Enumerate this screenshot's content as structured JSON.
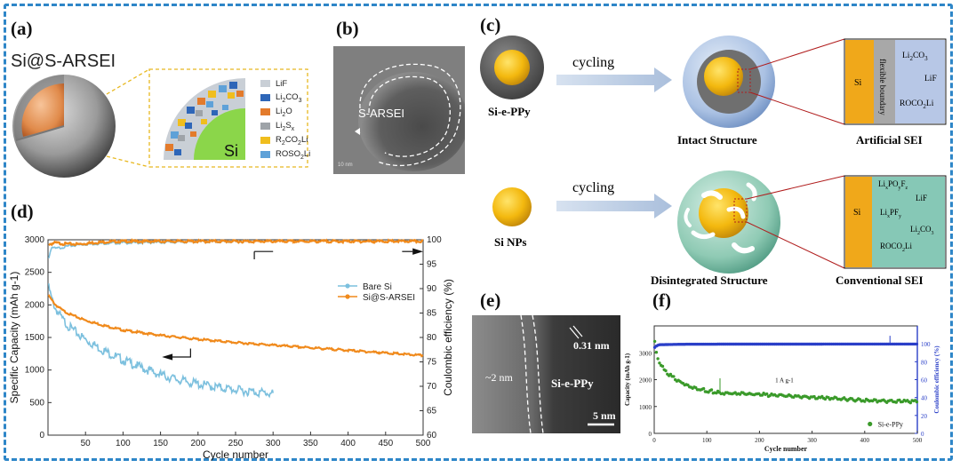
{
  "panel_labels": {
    "a": "(a)",
    "b": "(b)",
    "c": "(c)",
    "d": "(d)",
    "e": "(e)",
    "f": "(f)"
  },
  "panel_a": {
    "title": "Si@S-ARSEI",
    "core_label": "Si",
    "legend": [
      {
        "name": "LiF",
        "color": "#c9cfd6"
      },
      {
        "name": "Li2CO3",
        "color": "#2e66b8"
      },
      {
        "name": "Li2O",
        "color": "#e37b2c"
      },
      {
        "name": "Li2Sx",
        "color": "#9ea3a8"
      },
      {
        "name": "R2CO2Li",
        "color": "#f0be1e"
      },
      {
        "name": "ROSO2Li",
        "color": "#5ea1d8"
      }
    ]
  },
  "panel_b": {
    "label": "S-ARSEI",
    "scale": "10 nm"
  },
  "panel_c": {
    "top": {
      "particle": "Si-e-PPy",
      "arrow_text": "cycling",
      "structure": "Intact Structure",
      "sei_title": "Artificial SEI",
      "sei_si": "Si",
      "sei_boundary": "flexible boundary",
      "sei_species": [
        "Li2CO3",
        "LiF",
        "ROCO2Li"
      ]
    },
    "bottom": {
      "particle": "Si NPs",
      "arrow_text": "cycling",
      "structure": "Disintegrated Structure",
      "sei_title": "Conventional SEI",
      "sei_si": "Si",
      "sei_species": [
        "LixPOyFz",
        "LiF",
        "LixPFy",
        "Li2CO3",
        "ROCO2Li"
      ]
    }
  },
  "panel_e": {
    "film": "~2 nm",
    "lattice": "0.31 nm",
    "label": "Si-e-PPy",
    "scale": "5 nm"
  },
  "chart_data": [
    {
      "type": "line",
      "id": "d",
      "xlabel": "Cycle number",
      "ylabel": "Specific Capacity (mAh g-1)",
      "y2label": "Coulombic efficiency (%)",
      "xlim": [
        0,
        500
      ],
      "ylim": [
        0,
        3000
      ],
      "y2lim": [
        60,
        100
      ],
      "xticks": [
        50,
        100,
        150,
        200,
        250,
        300,
        350,
        400,
        450,
        500
      ],
      "yticks": [
        0,
        500,
        1000,
        1500,
        2000,
        2500,
        3000
      ],
      "y2ticks": [
        60,
        65,
        70,
        75,
        80,
        85,
        90,
        95,
        100
      ],
      "legend": [
        "Bare Si",
        "Si@S-ARSEI"
      ],
      "series": [
        {
          "name": "Bare Si",
          "color": "#7cc0de",
          "capacity": {
            "x": [
              1,
              5,
              10,
              20,
              30,
              50,
              75,
              100,
              125,
              150,
              175,
              200,
              225,
              250,
              275,
              300
            ],
            "y": [
              2300,
              2120,
              1980,
              1800,
              1680,
              1500,
              1330,
              1190,
              1070,
              960,
              880,
              820,
              770,
              730,
              700,
              670
            ]
          },
          "ce": {
            "x": [
              1,
              5,
              10,
              20,
              30,
              50,
              75,
              100,
              150,
              200,
              250,
              300
            ],
            "y": [
              96.5,
              98.7,
              98.3,
              98.6,
              98.9,
              99.2,
              99.4,
              99.5,
              99.6,
              99.7,
              99.7,
              99.8
            ]
          }
        },
        {
          "name": "Si@S-ARSEI",
          "color": "#f08a1c",
          "capacity": {
            "x": [
              1,
              5,
              10,
              20,
              30,
              50,
              75,
              100,
              150,
              200,
              250,
              300,
              350,
              400,
              450,
              500
            ],
            "y": [
              2150,
              2080,
              2010,
              1920,
              1860,
              1770,
              1690,
              1620,
              1540,
              1480,
              1430,
              1390,
              1350,
              1310,
              1270,
              1230
            ]
          },
          "ce": {
            "x": [
              1,
              10,
              20,
              40,
              60,
              80,
              100,
              150,
              200,
              300,
              400,
              500
            ],
            "y": [
              99.2,
              99.5,
              99.3,
              99.2,
              99.5,
              99.7,
              99.8,
              99.8,
              99.8,
              99.8,
              99.8,
              99.8
            ]
          }
        }
      ]
    },
    {
      "type": "scatter",
      "id": "f",
      "xlabel": "Cycle number",
      "ylabel": "Capacity (mAh g-1)",
      "y2label": "Coulombic efficiency (%)",
      "annotation": "1 A g-1",
      "legend": [
        "Si-e-PPy"
      ],
      "xlim": [
        0,
        500
      ],
      "ylim": [
        0,
        4000
      ],
      "y2lim": [
        0,
        120
      ],
      "xticks": [
        0,
        100,
        200,
        300,
        400,
        500
      ],
      "yticks": [
        0,
        1000,
        2000,
        3000
      ],
      "y2ticks": [
        0,
        20,
        40,
        60,
        80,
        100
      ],
      "capacity": {
        "x": [
          1,
          5,
          10,
          20,
          40,
          60,
          80,
          100,
          120,
          150,
          200,
          250,
          300,
          350,
          400,
          450,
          500
        ],
        "y": [
          3400,
          2900,
          2650,
          2350,
          2050,
          1850,
          1720,
          1620,
          1560,
          1520,
          1480,
          1420,
          1370,
          1320,
          1270,
          1230,
          1200
        ]
      },
      "ce": {
        "x": [
          1,
          5,
          10,
          50,
          100,
          200,
          300,
          400,
          500
        ],
        "y": [
          96,
          98,
          99,
          99.5,
          99.6,
          99.7,
          99.7,
          99.8,
          99.8
        ]
      },
      "colors": {
        "capacity": "#3a9a2a",
        "ce": "#2a3fc8"
      }
    }
  ]
}
